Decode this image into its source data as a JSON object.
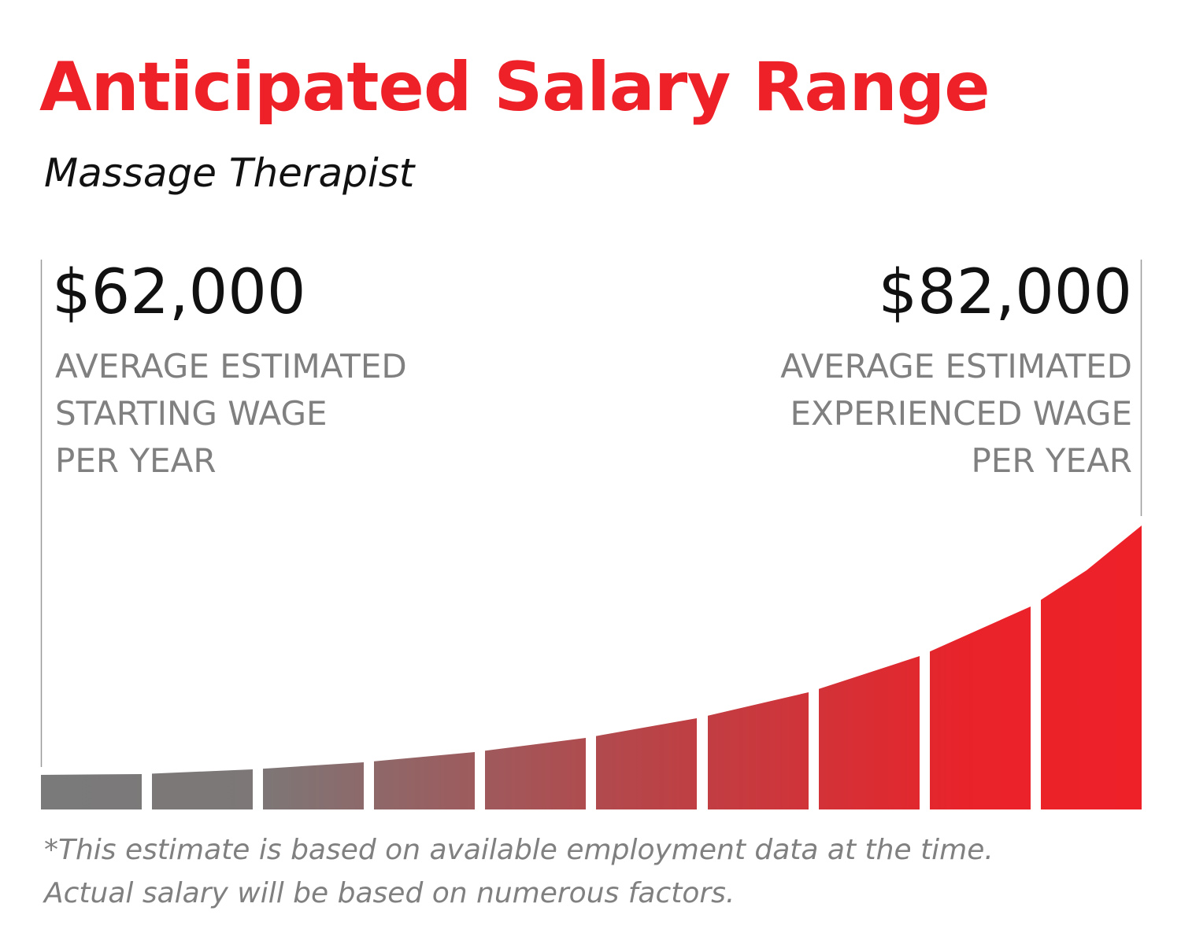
{
  "header": {
    "title": "Anticipated Salary Range",
    "subtitle": "Massage Therapist"
  },
  "start": {
    "amount": "$62,000",
    "label": [
      "AVERAGE ESTIMATED",
      "STARTING WAGE",
      "PER YEAR"
    ]
  },
  "experienced": {
    "amount": "$82,000",
    "label": [
      "AVERAGE ESTIMATED",
      "EXPERIENCED WAGE",
      "PER YEAR"
    ]
  },
  "footnote": [
    "*This estimate is based on available employment data at the time.",
    "Actual salary will be based on numerous factors."
  ]
}
